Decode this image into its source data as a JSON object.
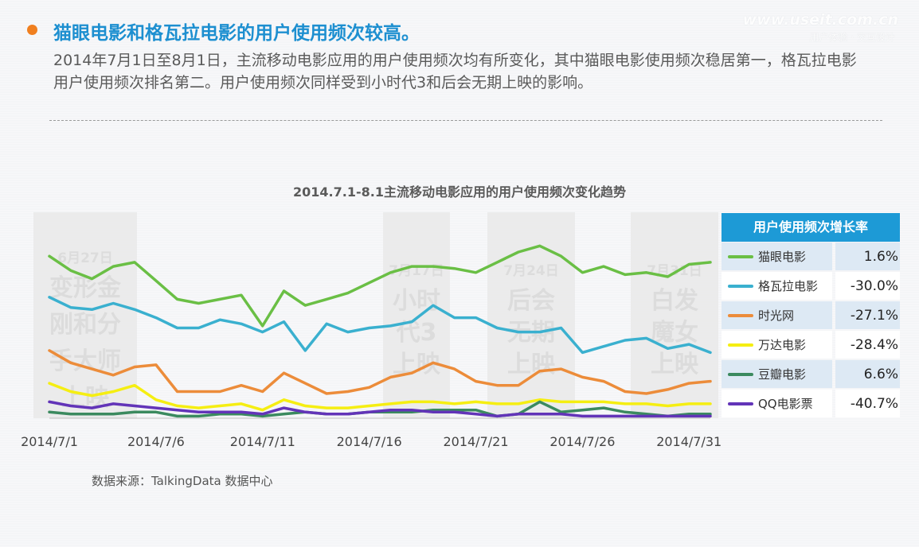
{
  "header": {
    "title": "猫眼电影和格瓦拉电影的用户使用频次较高。",
    "watermark": "www.useit.com.cn",
    "watermark_sub": "用户体验 · 交互设计",
    "description": "2014年7月1日至8月1日，主流移动电影应用的用户使用频次均有所变化，其中猫眼电影使用频次稳居第一，格瓦拉电影用户使用频次排名第二。用户使用频次同样受到小时代3和后会无期上映的影响。"
  },
  "source": "数据来源：TalkingData 数据中心",
  "colors": {
    "accent_blue": "#1d9ad6",
    "bullet_orange": "#f07f1f"
  },
  "chart_data": {
    "type": "line",
    "title": "2014.7.1-8.1主流移动电影应用的用户使用频次变化趋势",
    "xlabel": "",
    "ylabel": "",
    "x_ticks": [
      "2014/7/1",
      "2014/7/6",
      "2014/7/11",
      "2014/7/16",
      "2014/7/21",
      "2014/7/26",
      "2014/7/31"
    ],
    "x_start": "2014/7/1",
    "ylim": [
      0,
      100
    ],
    "legend_title": "用户使用频次增长率",
    "annotations": [
      {
        "date": "6月27日",
        "text": [
          "变形金",
          "刚和分",
          "手大师",
          "上映"
        ]
      },
      {
        "date": "7月17日",
        "text": [
          "小时",
          "代3",
          "上映"
        ]
      },
      {
        "date": "7月24日",
        "text": [
          "后会",
          "无期",
          "上映"
        ]
      },
      {
        "date": "7月31日",
        "text": [
          "白发",
          "魔女",
          "上映"
        ]
      }
    ],
    "series": [
      {
        "name": "猫眼电影",
        "growth": "1.6%",
        "color": "#6abf45",
        "values": [
          79,
          72,
          68,
          74,
          76,
          67,
          58,
          56,
          58,
          60,
          45,
          62,
          55,
          58,
          61,
          66,
          71,
          74,
          74,
          73,
          71,
          76,
          81,
          84,
          79,
          71,
          74,
          70,
          71,
          69,
          75,
          76
        ]
      },
      {
        "name": "格瓦拉电影",
        "growth": "-30.0%",
        "color": "#3ab0cf",
        "values": [
          59,
          54,
          53,
          56,
          53,
          49,
          44,
          44,
          48,
          46,
          42,
          47,
          33,
          46,
          42,
          44,
          45,
          47,
          55,
          49,
          49,
          44,
          42,
          42,
          44,
          32,
          35,
          38,
          39,
          34,
          36,
          32
        ]
      },
      {
        "name": "时光网",
        "growth": "-27.1%",
        "color": "#ec8c3a",
        "values": [
          33,
          27,
          24,
          21,
          25,
          26,
          13,
          13,
          13,
          16,
          13,
          22,
          17,
          12,
          13,
          15,
          20,
          22,
          27,
          24,
          18,
          16,
          16,
          23,
          24,
          20,
          18,
          13,
          12,
          14,
          17,
          18
        ]
      },
      {
        "name": "万达电影",
        "growth": "-28.4%",
        "color": "#f5ee12",
        "values": [
          17,
          13,
          11,
          13,
          16,
          9,
          6,
          5,
          6,
          7,
          4,
          9,
          6,
          5,
          5,
          6,
          7,
          8,
          8,
          7,
          8,
          7,
          7,
          9,
          8,
          8,
          8,
          7,
          7,
          6,
          7,
          7
        ]
      },
      {
        "name": "豆瓣电影",
        "growth": "6.6%",
        "color": "#3b8a5f",
        "values": [
          3,
          2,
          2,
          2,
          3,
          3,
          1,
          1,
          2,
          2,
          1,
          2,
          3,
          2,
          2,
          3,
          3,
          3,
          4,
          4,
          4,
          1,
          2,
          8,
          3,
          4,
          5,
          3,
          2,
          1,
          2,
          2
        ]
      },
      {
        "name": "QQ电影票",
        "growth": "-40.7%",
        "color": "#6234b8",
        "values": [
          8,
          6,
          5,
          7,
          6,
          5,
          4,
          3,
          3,
          3,
          2,
          5,
          3,
          2,
          2,
          3,
          4,
          4,
          3,
          3,
          2,
          1,
          2,
          2,
          2,
          1,
          1,
          1,
          1,
          1,
          1,
          1
        ]
      }
    ]
  }
}
